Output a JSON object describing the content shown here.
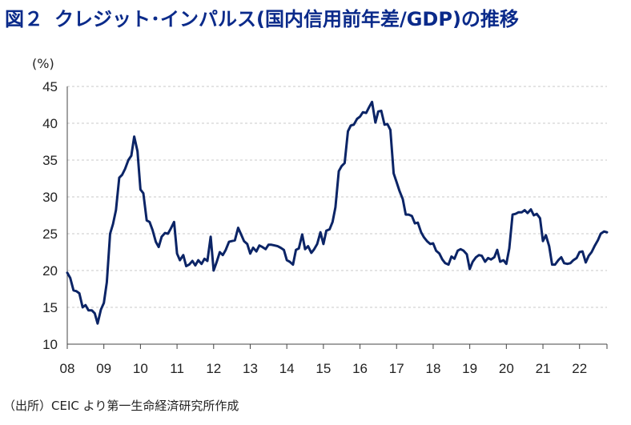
{
  "header": {
    "figure_label": "図２",
    "title": "クレジット･インパルス(国内信用前年差/GDP)の推移"
  },
  "source_note": "（出所）CEIC より第一生命経済研究所作成",
  "colors": {
    "line": "#0b2466",
    "title": "#0a2a8a",
    "grid": "#c8c8c8"
  },
  "chart_data": {
    "type": "line",
    "title": "クレジット･インパルス(国内信用前年差/GDP)の推移",
    "ylabel": "(%)",
    "xlabel": "",
    "ylim": [
      10,
      45
    ],
    "yticks": [
      10,
      15,
      20,
      25,
      30,
      35,
      40,
      45
    ],
    "xlim": [
      2008,
      2022.75
    ],
    "xtick_values": [
      2008,
      2009,
      2010,
      2011,
      2012,
      2013,
      2014,
      2015,
      2016,
      2017,
      2018,
      2019,
      2020,
      2021,
      2022
    ],
    "xtick_labels": [
      "08",
      "09",
      "10",
      "11",
      "12",
      "13",
      "14",
      "15",
      "16",
      "17",
      "18",
      "19",
      "20",
      "21",
      "22"
    ],
    "grid": true,
    "legend": "none",
    "series": [
      {
        "x": [
          2008.0,
          2008.08,
          2008.17,
          2008.25,
          2008.33,
          2008.42,
          2008.5,
          2008.58,
          2008.67,
          2008.75,
          2008.83,
          2008.92,
          2009.0,
          2009.08,
          2009.17,
          2009.25,
          2009.33,
          2009.42,
          2009.5,
          2009.58,
          2009.67,
          2009.75,
          2009.83,
          2009.92,
          2010.0,
          2010.08,
          2010.17,
          2010.25,
          2010.33,
          2010.42,
          2010.5,
          2010.58,
          2010.67,
          2010.75,
          2010.83,
          2010.92,
          2011.0,
          2011.08,
          2011.17,
          2011.25,
          2011.33,
          2011.42,
          2011.5,
          2011.58,
          2011.67,
          2011.75,
          2011.83,
          2011.92,
          2012.0,
          2012.08,
          2012.17,
          2012.25,
          2012.33,
          2012.42,
          2012.5,
          2012.58,
          2012.67,
          2012.75,
          2012.83,
          2012.92,
          2013.0,
          2013.08,
          2013.17,
          2013.25,
          2013.33,
          2013.42,
          2013.5,
          2013.58,
          2013.67,
          2013.75,
          2013.83,
          2013.92,
          2014.0,
          2014.08,
          2014.17,
          2014.25,
          2014.33,
          2014.42,
          2014.5,
          2014.58,
          2014.67,
          2014.75,
          2014.83,
          2014.92,
          2015.0,
          2015.08,
          2015.17,
          2015.25,
          2015.33,
          2015.42,
          2015.5,
          2015.58,
          2015.67,
          2015.75,
          2015.83,
          2015.92,
          2016.0,
          2016.08,
          2016.17,
          2016.25,
          2016.33,
          2016.42,
          2016.5,
          2016.58,
          2016.67,
          2016.75,
          2016.83,
          2016.92,
          2017.0,
          2017.08,
          2017.17,
          2017.25,
          2017.33,
          2017.42,
          2017.5,
          2017.58,
          2017.67,
          2017.75,
          2017.83,
          2017.92,
          2018.0,
          2018.08,
          2018.17,
          2018.25,
          2018.33,
          2018.42,
          2018.5,
          2018.58,
          2018.67,
          2018.75,
          2018.83,
          2018.92,
          2019.0,
          2019.08,
          2019.17,
          2019.25,
          2019.33,
          2019.42,
          2019.5,
          2019.58,
          2019.67,
          2019.75,
          2019.83,
          2019.92,
          2020.0,
          2020.08,
          2020.17,
          2020.25,
          2020.33,
          2020.42,
          2020.5,
          2020.58,
          2020.67,
          2020.75,
          2020.83,
          2020.92,
          2021.0,
          2021.08,
          2021.17,
          2021.25,
          2021.33,
          2021.42,
          2021.5,
          2021.58,
          2021.67,
          2021.75,
          2021.83,
          2021.92,
          2022.0,
          2022.08,
          2022.17,
          2022.25,
          2022.33,
          2022.42,
          2022.5,
          2022.58,
          2022.67,
          2022.75
        ],
        "values": [
          19.7,
          19.0,
          17.3,
          17.2,
          16.9,
          15.0,
          15.3,
          14.6,
          14.6,
          14.2,
          12.8,
          14.7,
          15.6,
          18.4,
          25.0,
          26.3,
          28.2,
          32.6,
          33.0,
          33.8,
          35.0,
          35.6,
          38.2,
          36.2,
          31.0,
          30.5,
          26.8,
          26.6,
          25.5,
          23.9,
          23.2,
          24.6,
          25.1,
          25.0,
          25.7,
          26.6,
          22.3,
          21.4,
          22.1,
          20.6,
          20.8,
          21.3,
          20.7,
          21.4,
          20.9,
          21.6,
          21.3,
          24.6,
          20.0,
          21.1,
          22.5,
          22.1,
          22.8,
          23.9,
          24.0,
          24.1,
          25.8,
          24.9,
          24.0,
          23.6,
          22.3,
          23.1,
          22.6,
          23.4,
          23.2,
          22.9,
          23.5,
          23.5,
          23.4,
          23.3,
          23.1,
          22.8,
          21.4,
          21.2,
          20.8,
          22.8,
          23.0,
          24.9,
          22.9,
          23.3,
          22.4,
          22.9,
          23.6,
          25.2,
          23.6,
          25.4,
          25.6,
          26.6,
          28.6,
          33.5,
          34.2,
          34.6,
          38.9,
          39.7,
          39.8,
          40.6,
          40.9,
          41.5,
          41.4,
          42.2,
          42.9,
          40.1,
          41.6,
          41.7,
          39.8,
          39.9,
          39.1,
          33.2,
          32.0,
          30.8,
          29.7,
          27.6,
          27.6,
          27.4,
          26.4,
          26.5,
          25.2,
          24.5,
          24.0,
          23.6,
          23.7,
          22.7,
          22.3,
          21.5,
          21.0,
          20.8,
          21.9,
          21.6,
          22.7,
          22.9,
          22.7,
          22.2,
          20.2,
          21.2,
          21.8,
          22.1,
          22.0,
          21.2,
          21.7,
          21.5,
          21.8,
          22.8,
          21.2,
          21.4,
          20.9,
          23.0,
          27.6,
          27.7,
          27.9,
          27.9,
          28.2,
          27.8,
          28.3,
          27.5,
          27.7,
          27.1,
          24.0,
          24.8,
          23.3,
          20.8,
          20.8,
          21.4,
          21.8,
          21.0,
          20.9,
          21.0,
          21.4,
          21.7,
          22.5,
          22.6,
          21.1,
          22.0,
          22.5,
          23.4,
          24.1,
          25.0,
          25.3,
          25.2
        ]
      }
    ]
  }
}
